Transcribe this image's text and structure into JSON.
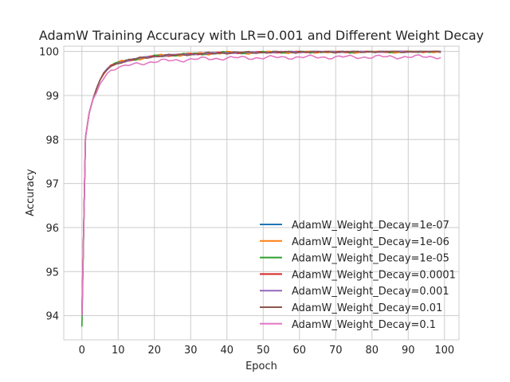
{
  "chart_data": {
    "type": "line",
    "title": "AdamW Training Accuracy with LR=0.001 and Different Weight Decay",
    "xlabel": "Epoch",
    "ylabel": "Accuracy",
    "xlim": [
      -5,
      104
    ],
    "ylim": [
      93.45,
      100.12
    ],
    "xticks": [
      0,
      10,
      20,
      30,
      40,
      50,
      60,
      70,
      80,
      90,
      100
    ],
    "yticks": [
      94,
      95,
      96,
      97,
      98,
      99,
      100
    ],
    "grid": true,
    "legend_position": "lower-right",
    "series": [
      {
        "name": "AdamW_Weight_Decay=1e-07",
        "color": "#1f77b4",
        "noise": 0.02,
        "y0": 94.0
      },
      {
        "name": "AdamW_Weight_Decay=1e-06",
        "color": "#ff7f0e",
        "noise": 0.04,
        "y0": 94.05
      },
      {
        "name": "AdamW_Weight_Decay=1e-05",
        "color": "#2ca02c",
        "noise": 0.03,
        "y0": 93.75
      },
      {
        "name": "AdamW_Weight_Decay=0.0001",
        "color": "#d62728",
        "noise": 0.02,
        "y0": 94.0
      },
      {
        "name": "AdamW_Weight_Decay=0.001",
        "color": "#9467bd",
        "noise": 0.02,
        "y0": 94.0
      },
      {
        "name": "AdamW_Weight_Decay=0.01",
        "color": "#8c564b",
        "noise": 0.03,
        "y0": 94.0
      },
      {
        "name": "AdamW_Weight_Decay=0.1",
        "color": "#e377c2",
        "noise": 0.05,
        "y0": 94.0
      }
    ]
  }
}
